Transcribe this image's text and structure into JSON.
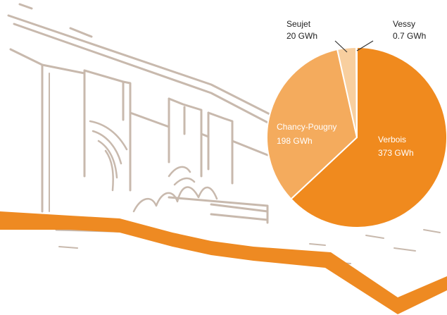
{
  "colors": {
    "sketch": "#c8b9ad",
    "river": "#ee8a22",
    "leader": "#333333",
    "label_dark": "#222222",
    "label_light": "#ffffff"
  },
  "illustration": {
    "icon": "hydroelectric-dam-sketch-icon"
  },
  "chart_data": {
    "type": "pie",
    "title": "",
    "slices": [
      {
        "label": "Verbois",
        "value_text": "373 GWh",
        "value": 373,
        "color": "#f08a1e",
        "label_style": "inside"
      },
      {
        "label": "Chancy-Pougny",
        "value_text": "198 GWh",
        "value": 198,
        "color": "#f4ab5d",
        "label_style": "inside"
      },
      {
        "label": "Seujet",
        "value_text": "20 GWh",
        "value": 20,
        "color": "#f8cf9f",
        "label_style": "outside"
      },
      {
        "label": "Vessy",
        "value_text": "0.7 GWh",
        "value": 0.7,
        "color": "#f6c18a",
        "label_style": "outside"
      }
    ],
    "start_angle_deg": 0,
    "direction": "clockwise",
    "legend": "none"
  }
}
